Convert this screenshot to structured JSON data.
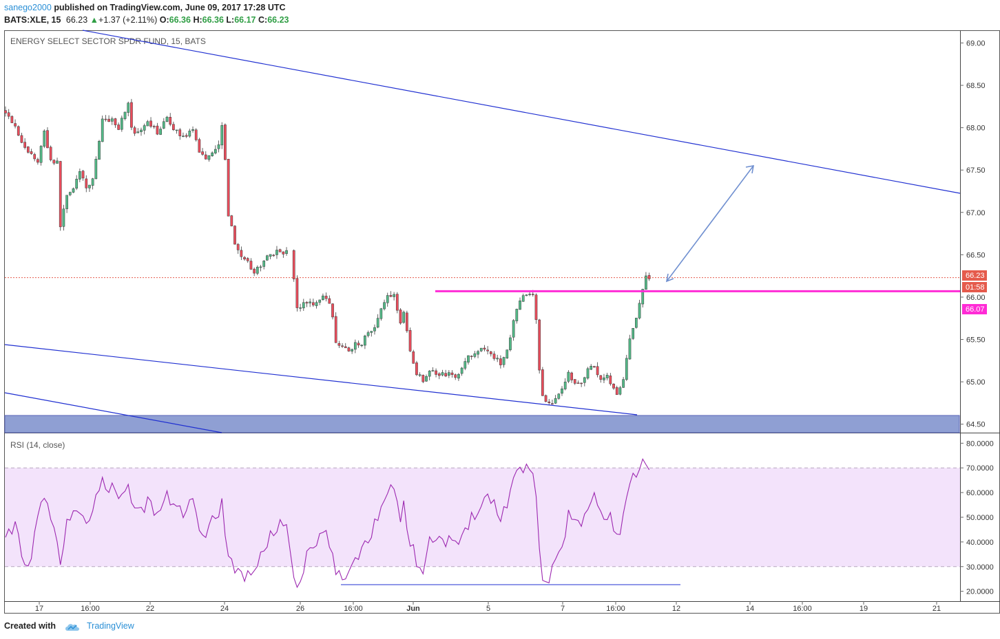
{
  "header": {
    "author": "sanego2000",
    "published_text": "published on TradingView.com, June 09, 2017 17:28 UTC",
    "symbol": "BATS:XLE, 15",
    "last": "66.23",
    "change": "+1.37 (+2.11%)",
    "open_label": "O:",
    "open": "66.36",
    "high_label": "H:",
    "high": "66.36",
    "low_label": "L:",
    "low": "66.17",
    "close_label": "C:",
    "close": "66.23"
  },
  "footer": {
    "created_with": "Created with",
    "brand": "TradingView"
  },
  "colors": {
    "up": "#53b987",
    "down": "#eb4d5c",
    "trendline": "#1f2fd1",
    "arrow": "#6f8fd0",
    "resistance": "#ff2bd6",
    "zone": "#8f9fd3",
    "rsi": "#9c27b0",
    "rsi_band": "#f3e3fb",
    "price_tag": "#e55b4c"
  },
  "chart_data": [
    {
      "type": "candlestick",
      "title": "ENERGY SELECT SECTOR SPDR FUND, 15, BATS",
      "y_ticks": [
        "69.00",
        "68.50",
        "68.00",
        "67.50",
        "67.00",
        "66.50",
        "66.00",
        "65.50",
        "65.00",
        "64.50"
      ],
      "ylim": [
        64.4,
        69.15
      ],
      "x_ticks": [
        "17",
        "16:00",
        "22",
        "24",
        "26",
        "16:00",
        "Jun",
        "5",
        "7",
        "16:00",
        "12",
        "14",
        "16:00",
        "19",
        "21"
      ],
      "last_price": "66.23",
      "countdown": "01:58",
      "resistance_level": "66.07",
      "resistance": 66.07,
      "path": [
        [
          0,
          68.2
        ],
        [
          3,
          68.02
        ],
        [
          6,
          67.75
        ],
        [
          8,
          67.68
        ],
        [
          10,
          67.6
        ],
        [
          12,
          67.95
        ],
        [
          14,
          67.62
        ],
        [
          16,
          67.58
        ],
        [
          17,
          66.85
        ],
        [
          19,
          67.2
        ],
        [
          21,
          67.3
        ],
        [
          23,
          67.48
        ],
        [
          25,
          67.27
        ],
        [
          27,
          67.4
        ],
        [
          30,
          68.08
        ],
        [
          33,
          68.1
        ],
        [
          35,
          68.0
        ],
        [
          36,
          68.1
        ],
        [
          38,
          68.3
        ],
        [
          39,
          68.0
        ],
        [
          40,
          67.92
        ],
        [
          42,
          67.95
        ],
        [
          44,
          68.05
        ],
        [
          47,
          67.95
        ],
        [
          50,
          68.1
        ],
        [
          53,
          67.95
        ],
        [
          55,
          67.9
        ],
        [
          58,
          67.95
        ],
        [
          60,
          67.73
        ],
        [
          62,
          67.64
        ],
        [
          64,
          67.72
        ],
        [
          66,
          67.8
        ],
        [
          67,
          68.05
        ],
        [
          68,
          67.65
        ],
        [
          69,
          66.98
        ],
        [
          71,
          66.65
        ],
        [
          73,
          66.45
        ],
        [
          75,
          66.4
        ],
        [
          77,
          66.3
        ],
        [
          79,
          66.35
        ],
        [
          81,
          66.5
        ],
        [
          83,
          66.52
        ],
        [
          85,
          66.54
        ],
        [
          87,
          66.53
        ],
        [
          88,
          66.22
        ],
        [
          89,
          65.85
        ],
        [
          91,
          65.95
        ],
        [
          93,
          65.92
        ],
        [
          95,
          65.92
        ],
        [
          97,
          66.02
        ],
        [
          99,
          65.9
        ],
        [
          100,
          65.75
        ],
        [
          101,
          65.45
        ],
        [
          103,
          65.42
        ],
        [
          105,
          65.35
        ],
        [
          107,
          65.47
        ],
        [
          109,
          65.45
        ],
        [
          111,
          65.58
        ],
        [
          113,
          65.65
        ],
        [
          115,
          65.85
        ],
        [
          117,
          66.0
        ],
        [
          119,
          66.04
        ],
        [
          120,
          65.82
        ],
        [
          121,
          65.72
        ],
        [
          122,
          65.82
        ],
        [
          123,
          65.6
        ],
        [
          124,
          65.38
        ],
        [
          126,
          65.1
        ],
        [
          128,
          65.02
        ],
        [
          130,
          65.15
        ],
        [
          132,
          65.08
        ],
        [
          134,
          65.1
        ],
        [
          136,
          65.08
        ],
        [
          138,
          65.05
        ],
        [
          140,
          65.15
        ],
        [
          142,
          65.3
        ],
        [
          144,
          65.35
        ],
        [
          146,
          65.38
        ],
        [
          148,
          65.38
        ],
        [
          150,
          65.3
        ],
        [
          152,
          65.2
        ],
        [
          154,
          65.35
        ],
        [
          156,
          65.75
        ],
        [
          158,
          65.95
        ],
        [
          160,
          66.04
        ],
        [
          162,
          66.0
        ],
        [
          163,
          65.72
        ],
        [
          164,
          65.15
        ],
        [
          165,
          64.82
        ],
        [
          167,
          64.75
        ],
        [
          169,
          64.78
        ],
        [
          171,
          64.9
        ],
        [
          173,
          65.1
        ],
        [
          175,
          65.0
        ],
        [
          177,
          64.98
        ],
        [
          179,
          65.15
        ],
        [
          181,
          65.2
        ],
        [
          183,
          65.0
        ],
        [
          185,
          65.05
        ],
        [
          187,
          64.95
        ],
        [
          188,
          64.85
        ],
        [
          190,
          65.05
        ],
        [
          192,
          65.5
        ],
        [
          194,
          65.75
        ],
        [
          196,
          66.1
        ],
        [
          197,
          66.26
        ],
        [
          198,
          66.23
        ]
      ]
    },
    {
      "type": "line",
      "title": "RSI (14, close)",
      "y_ticks": [
        "80.0000",
        "70.0000",
        "60.0000",
        "50.0000",
        "40.0000",
        "30.0000",
        "20.0000"
      ],
      "ylim": [
        16,
        84
      ],
      "overbought": 70,
      "oversold": 30,
      "path": [
        [
          0,
          40
        ],
        [
          3,
          47
        ],
        [
          6,
          32
        ],
        [
          8,
          32
        ],
        [
          10,
          50
        ],
        [
          12,
          58
        ],
        [
          14,
          48
        ],
        [
          16,
          43
        ],
        [
          17,
          28
        ],
        [
          19,
          48
        ],
        [
          21,
          52
        ],
        [
          23,
          50
        ],
        [
          25,
          46
        ],
        [
          27,
          52
        ],
        [
          30,
          68
        ],
        [
          31,
          60
        ],
        [
          33,
          62
        ],
        [
          35,
          58
        ],
        [
          36,
          60
        ],
        [
          38,
          66
        ],
        [
          39,
          55
        ],
        [
          40,
          52
        ],
        [
          42,
          53
        ],
        [
          44,
          56
        ],
        [
          47,
          52
        ],
        [
          50,
          58
        ],
        [
          53,
          54
        ],
        [
          55,
          52
        ],
        [
          58,
          56
        ],
        [
          60,
          45
        ],
        [
          62,
          40
        ],
        [
          64,
          48
        ],
        [
          66,
          52
        ],
        [
          67,
          58
        ],
        [
          68,
          45
        ],
        [
          69,
          33
        ],
        [
          71,
          30
        ],
        [
          73,
          27
        ],
        [
          75,
          26
        ],
        [
          77,
          30
        ],
        [
          79,
          33
        ],
        [
          81,
          40
        ],
        [
          83,
          44
        ],
        [
          85,
          48
        ],
        [
          87,
          47
        ],
        [
          88,
          27
        ],
        [
          89,
          22
        ],
        [
          91,
          30
        ],
        [
          93,
          37
        ],
        [
          95,
          38
        ],
        [
          97,
          44
        ],
        [
          99,
          40
        ],
        [
          100,
          34
        ],
        [
          101,
          26
        ],
        [
          103,
          25
        ],
        [
          105,
          28
        ],
        [
          107,
          35
        ],
        [
          109,
          36
        ],
        [
          111,
          42
        ],
        [
          113,
          47
        ],
        [
          115,
          55
        ],
        [
          117,
          62
        ],
        [
          119,
          64
        ],
        [
          120,
          55
        ],
        [
          121,
          50
        ],
        [
          122,
          55
        ],
        [
          123,
          46
        ],
        [
          124,
          40
        ],
        [
          126,
          32
        ],
        [
          128,
          30
        ],
        [
          130,
          42
        ],
        [
          132,
          40
        ],
        [
          134,
          42
        ],
        [
          136,
          40
        ],
        [
          138,
          38
        ],
        [
          140,
          42
        ],
        [
          142,
          48
        ],
        [
          144,
          52
        ],
        [
          146,
          57
        ],
        [
          148,
          58
        ],
        [
          150,
          55
        ],
        [
          152,
          50
        ],
        [
          154,
          56
        ],
        [
          156,
          66
        ],
        [
          158,
          70
        ],
        [
          160,
          72
        ],
        [
          162,
          68
        ],
        [
          163,
          58
        ],
        [
          164,
          36
        ],
        [
          165,
          27
        ],
        [
          167,
          25
        ],
        [
          169,
          32
        ],
        [
          171,
          38
        ],
        [
          173,
          52
        ],
        [
          175,
          48
        ],
        [
          177,
          46
        ],
        [
          179,
          55
        ],
        [
          181,
          58
        ],
        [
          183,
          50
        ],
        [
          185,
          52
        ],
        [
          187,
          47
        ],
        [
          188,
          42
        ],
        [
          190,
          50
        ],
        [
          192,
          62
        ],
        [
          194,
          68
        ],
        [
          196,
          74
        ],
        [
          197,
          74
        ],
        [
          198,
          72
        ]
      ]
    }
  ]
}
